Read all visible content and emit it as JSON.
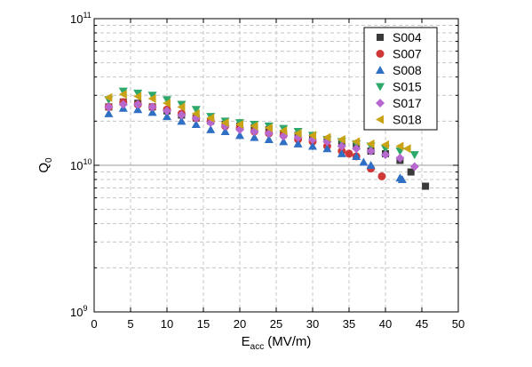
{
  "chart_data": {
    "type": "scatter",
    "xlabel": "E",
    "xlabel_sub": "acc",
    "xlabel_unit": "(MV/m)",
    "ylabel": "Q",
    "ylabel_sub": "0",
    "xscale": "linear",
    "yscale": "log",
    "xlim": [
      0,
      50
    ],
    "ylim": [
      1000000000.0,
      100000000000.0
    ],
    "xticks": [
      0,
      5,
      10,
      15,
      20,
      25,
      30,
      35,
      40,
      45,
      50
    ],
    "xtick_labels": [
      "0",
      "5",
      "10",
      "15",
      "20",
      "25",
      "30",
      "35",
      "40",
      "45",
      "50"
    ],
    "ytick_labels": [
      {
        "base": "10",
        "exp": "9",
        "value": 1000000000.0
      },
      {
        "base": "10",
        "exp": "10",
        "value": 10000000000.0
      },
      {
        "base": "10",
        "exp": "11",
        "value": 100000000000.0
      }
    ],
    "grid": "dashed",
    "reference_line": 10000000000.0,
    "legend_position": "top-right",
    "series": [
      {
        "name": "S004",
        "color": "#3a3a3a",
        "marker": "square",
        "x": [
          2,
          4,
          6,
          8,
          10,
          12,
          14,
          16,
          18,
          20,
          22,
          24,
          26,
          28,
          30,
          32,
          34,
          36,
          38,
          40,
          42,
          43.5,
          45.5
        ],
        "y": [
          25000000000.0,
          27000000000.0,
          26500000000.0,
          25000000000.0,
          23500000000.0,
          22000000000.0,
          21000000000.0,
          20000000000.0,
          19000000000.0,
          18500000000.0,
          18000000000.0,
          17500000000.0,
          16500000000.0,
          16000000000.0,
          15500000000.0,
          15000000000.0,
          14000000000.0,
          13500000000.0,
          12500000000.0,
          12000000000.0,
          10800000000.0,
          9000000000.0,
          7200000000.0
        ]
      },
      {
        "name": "S007",
        "color": "#d03838",
        "marker": "circle",
        "x": [
          2,
          4,
          6,
          8,
          10,
          12,
          14,
          16,
          18,
          20,
          22,
          24,
          26,
          28,
          30,
          32,
          34,
          35,
          36,
          38,
          39.5
        ],
        "y": [
          25000000000.0,
          27000000000.0,
          26000000000.0,
          25000000000.0,
          24000000000.0,
          22500000000.0,
          21000000000.0,
          20000000000.0,
          18500000000.0,
          18000000000.0,
          17000000000.0,
          16500000000.0,
          16000000000.0,
          15000000000.0,
          14500000000.0,
          13500000000.0,
          12500000000.0,
          12000000000.0,
          11500000000.0,
          9500000000.0,
          8400000000.0
        ]
      },
      {
        "name": "S008",
        "color": "#2f6fc4",
        "marker": "triangle-up",
        "x": [
          2,
          4,
          6,
          8,
          10,
          12,
          14,
          16,
          18,
          20,
          22,
          24,
          26,
          28,
          30,
          32,
          34,
          36,
          37,
          38,
          42,
          42.3
        ],
        "y": [
          22500000000.0,
          24500000000.0,
          24000000000.0,
          23000000000.0,
          21500000000.0,
          20000000000.0,
          19000000000.0,
          17500000000.0,
          17000000000.0,
          16000000000.0,
          15500000000.0,
          15000000000.0,
          14500000000.0,
          14000000000.0,
          13500000000.0,
          13000000000.0,
          12000000000.0,
          11500000000.0,
          10500000000.0,
          10000000000.0,
          8200000000.0,
          8000000000.0
        ]
      },
      {
        "name": "S015",
        "color": "#2ea86a",
        "marker": "triangle-down",
        "x": [
          2,
          4,
          6,
          8,
          10,
          12,
          14,
          16,
          18,
          20,
          22,
          24,
          26,
          28,
          30,
          32,
          34,
          36,
          38,
          40,
          42,
          44
        ],
        "y": [
          28000000000.0,
          32000000000.0,
          31000000000.0,
          30000000000.0,
          28000000000.0,
          26000000000.0,
          24000000000.0,
          21500000000.0,
          20000000000.0,
          19500000000.0,
          19000000000.0,
          18500000000.0,
          17800000000.0,
          17000000000.0,
          16000000000.0,
          15000000000.0,
          14500000000.0,
          14000000000.0,
          13500000000.0,
          13000000000.0,
          12500000000.0,
          11800000000.0
        ]
      },
      {
        "name": "S017",
        "color": "#b768cf",
        "marker": "diamond",
        "x": [
          2,
          4,
          6,
          8,
          10,
          12,
          14,
          16,
          18,
          20,
          22,
          24,
          26,
          28,
          30,
          32,
          34,
          36,
          38,
          40,
          42,
          44
        ],
        "y": [
          25000000000.0,
          26000000000.0,
          26000000000.0,
          25000000000.0,
          23500000000.0,
          22000000000.0,
          21000000000.0,
          19500000000.0,
          18500000000.0,
          17500000000.0,
          17000000000.0,
          16500000000.0,
          15800000000.0,
          15500000000.0,
          15000000000.0,
          14500000000.0,
          13500000000.0,
          13000000000.0,
          12500000000.0,
          11800000000.0,
          11200000000.0,
          9800000000.0
        ]
      },
      {
        "name": "S018",
        "color": "#c9a215",
        "marker": "triangle-left",
        "x": [
          2,
          4,
          6,
          8,
          10,
          12,
          14,
          16,
          18,
          20,
          22,
          24,
          26,
          28,
          30,
          32,
          34,
          36,
          38,
          40,
          42,
          43
        ],
        "y": [
          29000000000.0,
          30500000000.0,
          29500000000.0,
          28500000000.0,
          26500000000.0,
          25000000000.0,
          22500000000.0,
          21000000000.0,
          19500000000.0,
          19000000000.0,
          18500000000.0,
          18000000000.0,
          17200000000.0,
          16500000000.0,
          16000000000.0,
          15500000000.0,
          15000000000.0,
          14500000000.0,
          14000000000.0,
          13800000000.0,
          13500000000.0,
          13000000000.0
        ]
      }
    ]
  }
}
